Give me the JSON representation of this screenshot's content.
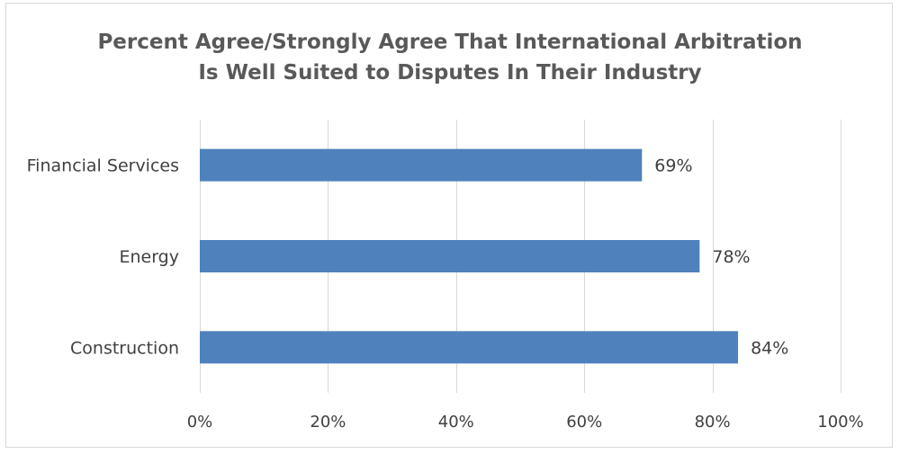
{
  "chart_data": {
    "type": "bar",
    "orientation": "horizontal",
    "title_lines": [
      "Percent Agree/Strongly Agree That International Arbitration",
      "Is Well Suited to Disputes In Their Industry"
    ],
    "categories": [
      "Financial Services",
      "Energy",
      "Construction"
    ],
    "values": [
      69,
      78,
      84
    ],
    "value_labels": [
      "69%",
      "78%",
      "84%"
    ],
    "x_ticks": [
      0,
      20,
      40,
      60,
      80,
      100
    ],
    "x_tick_labels": [
      "0%",
      "20%",
      "40%",
      "60%",
      "80%",
      "100%"
    ],
    "xlim": [
      0,
      100
    ],
    "grid": true,
    "legend": "none",
    "bar_color": "#4f81bd",
    "grid_color": "#d9d9d9",
    "text_color": "#404040",
    "title_color": "#595959"
  }
}
